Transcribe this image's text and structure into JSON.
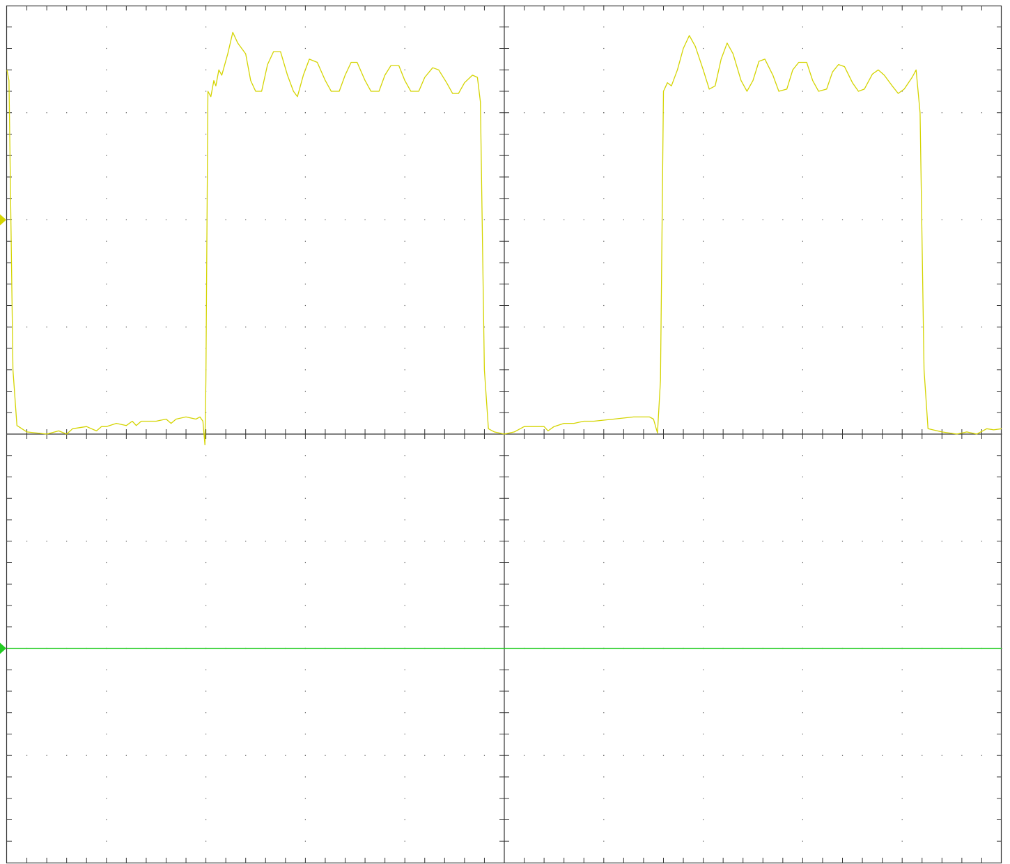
{
  "chart_data": {
    "type": "line",
    "title": "",
    "xlabel": "",
    "ylabel": "",
    "xlim": [
      0,
      10
    ],
    "ylim": [
      -4,
      4
    ],
    "grid": {
      "major_divisions_x": 10,
      "major_divisions_y": 8,
      "minor_ticks_per_division": 5,
      "dotted": true
    },
    "series": [
      {
        "channel": 1,
        "color": "#d4d400",
        "ground_marker_y": 2,
        "points": [
          [
            0.0,
            3.4
          ],
          [
            0.02,
            3.3
          ],
          [
            0.06,
            0.6
          ],
          [
            0.1,
            0.08
          ],
          [
            0.2,
            0.02
          ],
          [
            0.4,
            0.0
          ],
          [
            0.52,
            0.03
          ],
          [
            0.6,
            0.0
          ],
          [
            0.66,
            0.05
          ],
          [
            0.8,
            0.07
          ],
          [
            0.9,
            0.03
          ],
          [
            0.95,
            0.07
          ],
          [
            1.0,
            0.07
          ],
          [
            1.1,
            0.1
          ],
          [
            1.2,
            0.08
          ],
          [
            1.26,
            0.12
          ],
          [
            1.3,
            0.08
          ],
          [
            1.35,
            0.12
          ],
          [
            1.5,
            0.12
          ],
          [
            1.6,
            0.14
          ],
          [
            1.65,
            0.1
          ],
          [
            1.7,
            0.14
          ],
          [
            1.8,
            0.16
          ],
          [
            1.9,
            0.14
          ],
          [
            1.94,
            0.16
          ],
          [
            1.97,
            0.12
          ],
          [
            1.99,
            -0.1
          ],
          [
            2.0,
            0.5
          ],
          [
            2.02,
            3.2
          ],
          [
            2.05,
            3.15
          ],
          [
            2.08,
            3.3
          ],
          [
            2.1,
            3.25
          ],
          [
            2.13,
            3.4
          ],
          [
            2.16,
            3.35
          ],
          [
            2.22,
            3.55
          ],
          [
            2.27,
            3.75
          ],
          [
            2.32,
            3.65
          ],
          [
            2.4,
            3.55
          ],
          [
            2.45,
            3.3
          ],
          [
            2.5,
            3.2
          ],
          [
            2.56,
            3.2
          ],
          [
            2.62,
            3.45
          ],
          [
            2.68,
            3.57
          ],
          [
            2.75,
            3.57
          ],
          [
            2.82,
            3.35
          ],
          [
            2.88,
            3.2
          ],
          [
            2.92,
            3.15
          ],
          [
            2.98,
            3.35
          ],
          [
            3.04,
            3.5
          ],
          [
            3.12,
            3.47
          ],
          [
            3.2,
            3.3
          ],
          [
            3.26,
            3.2
          ],
          [
            3.34,
            3.2
          ],
          [
            3.4,
            3.35
          ],
          [
            3.46,
            3.47
          ],
          [
            3.52,
            3.47
          ],
          [
            3.6,
            3.3
          ],
          [
            3.66,
            3.2
          ],
          [
            3.74,
            3.2
          ],
          [
            3.8,
            3.35
          ],
          [
            3.86,
            3.44
          ],
          [
            3.94,
            3.44
          ],
          [
            4.0,
            3.3
          ],
          [
            4.06,
            3.2
          ],
          [
            4.14,
            3.2
          ],
          [
            4.2,
            3.33
          ],
          [
            4.28,
            3.42
          ],
          [
            4.34,
            3.4
          ],
          [
            4.42,
            3.28
          ],
          [
            4.48,
            3.18
          ],
          [
            4.54,
            3.18
          ],
          [
            4.6,
            3.28
          ],
          [
            4.68,
            3.35
          ],
          [
            4.73,
            3.33
          ],
          [
            4.76,
            3.1
          ],
          [
            4.8,
            0.6
          ],
          [
            4.84,
            0.05
          ],
          [
            4.9,
            0.02
          ],
          [
            5.0,
            0.0
          ],
          [
            5.1,
            0.02
          ],
          [
            5.2,
            0.07
          ],
          [
            5.4,
            0.07
          ],
          [
            5.44,
            0.03
          ],
          [
            5.5,
            0.07
          ],
          [
            5.6,
            0.1
          ],
          [
            5.7,
            0.1
          ],
          [
            5.8,
            0.12
          ],
          [
            5.9,
            0.12
          ],
          [
            6.1,
            0.14
          ],
          [
            6.3,
            0.16
          ],
          [
            6.46,
            0.16
          ],
          [
            6.5,
            0.14
          ],
          [
            6.54,
            0.01
          ],
          [
            6.57,
            0.5
          ],
          [
            6.6,
            3.2
          ],
          [
            6.64,
            3.28
          ],
          [
            6.68,
            3.25
          ],
          [
            6.74,
            3.4
          ],
          [
            6.8,
            3.6
          ],
          [
            6.86,
            3.72
          ],
          [
            6.92,
            3.62
          ],
          [
            7.0,
            3.4
          ],
          [
            7.06,
            3.22
          ],
          [
            7.12,
            3.25
          ],
          [
            7.18,
            3.5
          ],
          [
            7.24,
            3.65
          ],
          [
            7.3,
            3.55
          ],
          [
            7.38,
            3.3
          ],
          [
            7.44,
            3.2
          ],
          [
            7.5,
            3.3
          ],
          [
            7.56,
            3.48
          ],
          [
            7.62,
            3.5
          ],
          [
            7.7,
            3.35
          ],
          [
            7.76,
            3.2
          ],
          [
            7.84,
            3.22
          ],
          [
            7.9,
            3.4
          ],
          [
            7.96,
            3.47
          ],
          [
            8.04,
            3.47
          ],
          [
            8.1,
            3.3
          ],
          [
            8.16,
            3.2
          ],
          [
            8.24,
            3.22
          ],
          [
            8.3,
            3.38
          ],
          [
            8.36,
            3.45
          ],
          [
            8.42,
            3.43
          ],
          [
            8.5,
            3.28
          ],
          [
            8.56,
            3.2
          ],
          [
            8.62,
            3.22
          ],
          [
            8.7,
            3.36
          ],
          [
            8.76,
            3.4
          ],
          [
            8.82,
            3.35
          ],
          [
            8.9,
            3.25
          ],
          [
            8.96,
            3.18
          ],
          [
            9.02,
            3.22
          ],
          [
            9.1,
            3.33
          ],
          [
            9.14,
            3.4
          ],
          [
            9.18,
            3.0
          ],
          [
            9.22,
            0.6
          ],
          [
            9.26,
            0.05
          ],
          [
            9.4,
            0.02
          ],
          [
            9.55,
            0.0
          ],
          [
            9.65,
            0.02
          ],
          [
            9.75,
            0.0
          ],
          [
            9.85,
            0.05
          ],
          [
            9.92,
            0.04
          ],
          [
            10.0,
            0.05
          ]
        ]
      },
      {
        "channel": 2,
        "color": "#22cc22",
        "ground_marker_y": -2,
        "points": [
          [
            0,
            -2
          ],
          [
            10,
            -2
          ]
        ]
      }
    ]
  }
}
